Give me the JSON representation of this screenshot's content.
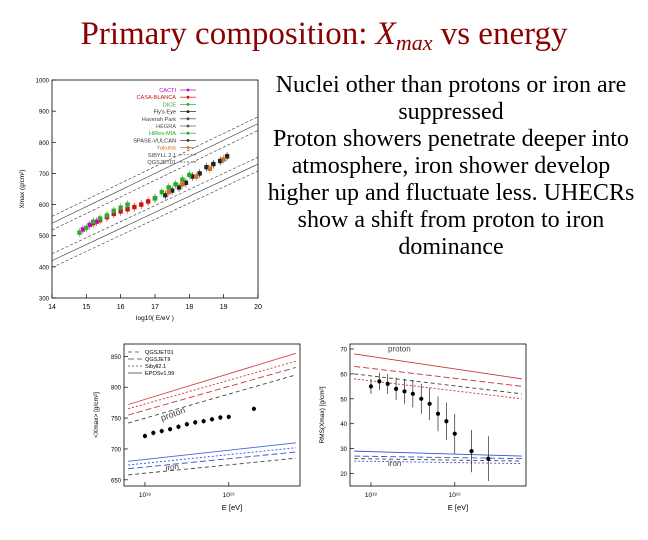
{
  "slide": {
    "title_main": "Primary composition: ",
    "title_x": "X",
    "title_sub": "max",
    "title_tail": " vs energy",
    "bullets": [
      "Nuclei other than protons or iron are suppressed",
      "Proton showers penetrate deeper into atmosphere, iron shower develop higher up and fluctuate less. UHECRs show a shift from proton to iron dominance"
    ]
  },
  "colors": {
    "title": "#8b0000"
  },
  "chart_data": [
    {
      "type": "scatter",
      "xlabel": "log10( E/eV )",
      "ylabel": "Xmax (g/cm²)",
      "xlim": [
        14,
        20
      ],
      "ylim": [
        300,
        1000
      ],
      "xticks": [
        "14",
        "15",
        "16",
        "17",
        "18",
        "19",
        "20"
      ],
      "yticks": [
        "300",
        "400",
        "500",
        "600",
        "700",
        "800",
        "900",
        "1000"
      ],
      "legend": [
        "CACTI",
        "CASA-BLANCA",
        "DICE",
        "Fly's Eye",
        "Haverah Park",
        "HEGRA",
        "HiRes-MIA",
        "SPASE-VULCAN",
        "Yakutsk",
        "SIBYLL 2.1",
        "QGSJET01"
      ],
      "legend_colors": [
        "#cc00cc",
        "#d01010",
        "#33aa33",
        "#222222",
        "#444444",
        "#555555",
        "#22aa22",
        "#333333",
        "#d07020",
        "#444444",
        "#444444"
      ],
      "series": [
        {
          "name": "CACTI",
          "color": "#cc00cc",
          "x": [
            14.9,
            15.1,
            15.3,
            15.6,
            15.8
          ],
          "y": [
            520,
            535,
            545,
            560,
            575
          ]
        },
        {
          "name": "CASA-BLANCA",
          "color": "#d01010",
          "x": [
            15.2,
            15.4,
            15.6,
            15.8,
            16.0,
            16.2,
            16.4,
            16.6,
            16.8,
            17.0
          ],
          "y": [
            540,
            550,
            560,
            570,
            578,
            585,
            592,
            600,
            610,
            620
          ]
        },
        {
          "name": "DICE",
          "color": "#33aa33",
          "x": [
            14.8,
            15.0,
            15.2,
            15.4,
            15.6,
            15.8,
            16.0,
            16.2
          ],
          "y": [
            510,
            525,
            545,
            555,
            565,
            580,
            590,
            600
          ]
        },
        {
          "name": "Fly's Eye",
          "color": "#222222",
          "x": [
            17.3,
            17.5,
            17.7,
            17.9,
            18.1,
            18.3,
            18.5,
            18.7,
            18.9,
            19.1
          ],
          "y": [
            630,
            645,
            655,
            670,
            690,
            700,
            720,
            730,
            740,
            755
          ]
        },
        {
          "name": "HiRes-MIA",
          "color": "#22aa22",
          "x": [
            17.0,
            17.2,
            17.4,
            17.6,
            17.8,
            18.0
          ],
          "y": [
            620,
            640,
            655,
            665,
            680,
            695
          ]
        },
        {
          "name": "Yakutsk",
          "color": "#d07020",
          "x": [
            17.4,
            17.8,
            18.2,
            18.6,
            19.0
          ],
          "y": [
            640,
            665,
            690,
            715,
            745
          ]
        }
      ],
      "model_lines": [
        {
          "name": "proton",
          "x": [
            14,
            20
          ],
          "y": [
            540,
            860
          ]
        },
        {
          "name": "iron",
          "x": [
            14,
            20
          ],
          "y": [
            420,
            730
          ]
        }
      ]
    },
    {
      "type": "scatter",
      "xlabel": "E [eV]",
      "ylabel": "<Xmax> [g/cm²]",
      "xticks": [
        "10¹⁸",
        "10¹⁹"
      ],
      "yticks": [
        "650",
        "700",
        "750",
        "800",
        "850"
      ],
      "ylim": [
        640,
        870
      ],
      "legend": [
        "QGSJET01",
        "QGSJETII",
        "Sibyll2.1",
        "EPOSv1.99"
      ],
      "annotations": [
        "proton",
        "iron"
      ],
      "x": [
        18.0,
        18.1,
        18.2,
        18.3,
        18.4,
        18.5,
        18.6,
        18.7,
        18.8,
        18.9,
        19.0,
        19.3
      ],
      "y": [
        721,
        726,
        729,
        732,
        736,
        740,
        743,
        745,
        748,
        751,
        752,
        765
      ],
      "lines": [
        {
          "name": "QGSJET01 proton",
          "color": "#444444",
          "dash": "4,3",
          "x": [
            17.8,
            19.8
          ],
          "y": [
            742,
            820
          ]
        },
        {
          "name": "QGSJETII proton",
          "color": "#cc3333",
          "dash": "6,3",
          "x": [
            17.8,
            19.8
          ],
          "y": [
            755,
            832
          ]
        },
        {
          "name": "Sibyll2.1 proton",
          "color": "#cc3333",
          "dash": "2,2",
          "x": [
            17.8,
            19.8
          ],
          "y": [
            765,
            842
          ]
        },
        {
          "name": "EPOSv1.99 proton",
          "color": "#d44444",
          "dash": "",
          "x": [
            17.8,
            19.8
          ],
          "y": [
            772,
            855
          ]
        },
        {
          "name": "QGSJET01 iron",
          "color": "#444444",
          "dash": "4,3",
          "x": [
            17.8,
            19.8
          ],
          "y": [
            658,
            685
          ]
        },
        {
          "name": "QGSJETII iron",
          "color": "#3355cc",
          "dash": "6,3",
          "x": [
            17.8,
            19.8
          ],
          "y": [
            668,
            695
          ]
        },
        {
          "name": "Sibyll2.1 iron",
          "color": "#3355cc",
          "dash": "2,2",
          "x": [
            17.8,
            19.8
          ],
          "y": [
            674,
            702
          ]
        },
        {
          "name": "EPOSv1.99 iron",
          "color": "#4466dd",
          "dash": "",
          "x": [
            17.8,
            19.8
          ],
          "y": [
            680,
            710
          ]
        }
      ]
    },
    {
      "type": "scatter",
      "xlabel": "E [eV]",
      "ylabel": "RMS(Xmax) [g/cm²]",
      "xticks": [
        "10¹⁸",
        "10¹⁹"
      ],
      "yticks": [
        "20",
        "30",
        "40",
        "50",
        "60",
        "70"
      ],
      "ylim": [
        15,
        72
      ],
      "annotations": [
        "proton",
        "iron"
      ],
      "x": [
        18.0,
        18.1,
        18.2,
        18.3,
        18.4,
        18.5,
        18.6,
        18.7,
        18.8,
        18.9,
        19.0,
        19.2,
        19.4
      ],
      "y": [
        55,
        57,
        56,
        54,
        53,
        52,
        50,
        48,
        44,
        41,
        36,
        29,
        26
      ],
      "lines": [
        {
          "name": "proton a",
          "color": "#cc3333",
          "dash": "",
          "x": [
            17.8,
            19.8
          ],
          "y": [
            68,
            58
          ]
        },
        {
          "name": "proton b",
          "color": "#cc3333",
          "dash": "6,3",
          "x": [
            17.8,
            19.8
          ],
          "y": [
            63,
            55
          ]
        },
        {
          "name": "proton c",
          "color": "#444444",
          "dash": "4,3",
          "x": [
            17.8,
            19.8
          ],
          "y": [
            60,
            52
          ]
        },
        {
          "name": "proton d",
          "color": "#cc3333",
          "dash": "2,2",
          "x": [
            17.8,
            19.8
          ],
          "y": [
            58,
            50
          ]
        },
        {
          "name": "iron a",
          "color": "#3355cc",
          "dash": "",
          "x": [
            17.8,
            19.8
          ],
          "y": [
            29,
            27
          ]
        },
        {
          "name": "iron b",
          "color": "#3355cc",
          "dash": "6,3",
          "x": [
            17.8,
            19.8
          ],
          "y": [
            27,
            26
          ]
        },
        {
          "name": "iron c",
          "color": "#444444",
          "dash": "4,3",
          "x": [
            17.8,
            19.8
          ],
          "y": [
            26,
            25
          ]
        },
        {
          "name": "iron d",
          "color": "#3355cc",
          "dash": "2,2",
          "x": [
            17.8,
            19.8
          ],
          "y": [
            25,
            24
          ]
        }
      ]
    }
  ]
}
